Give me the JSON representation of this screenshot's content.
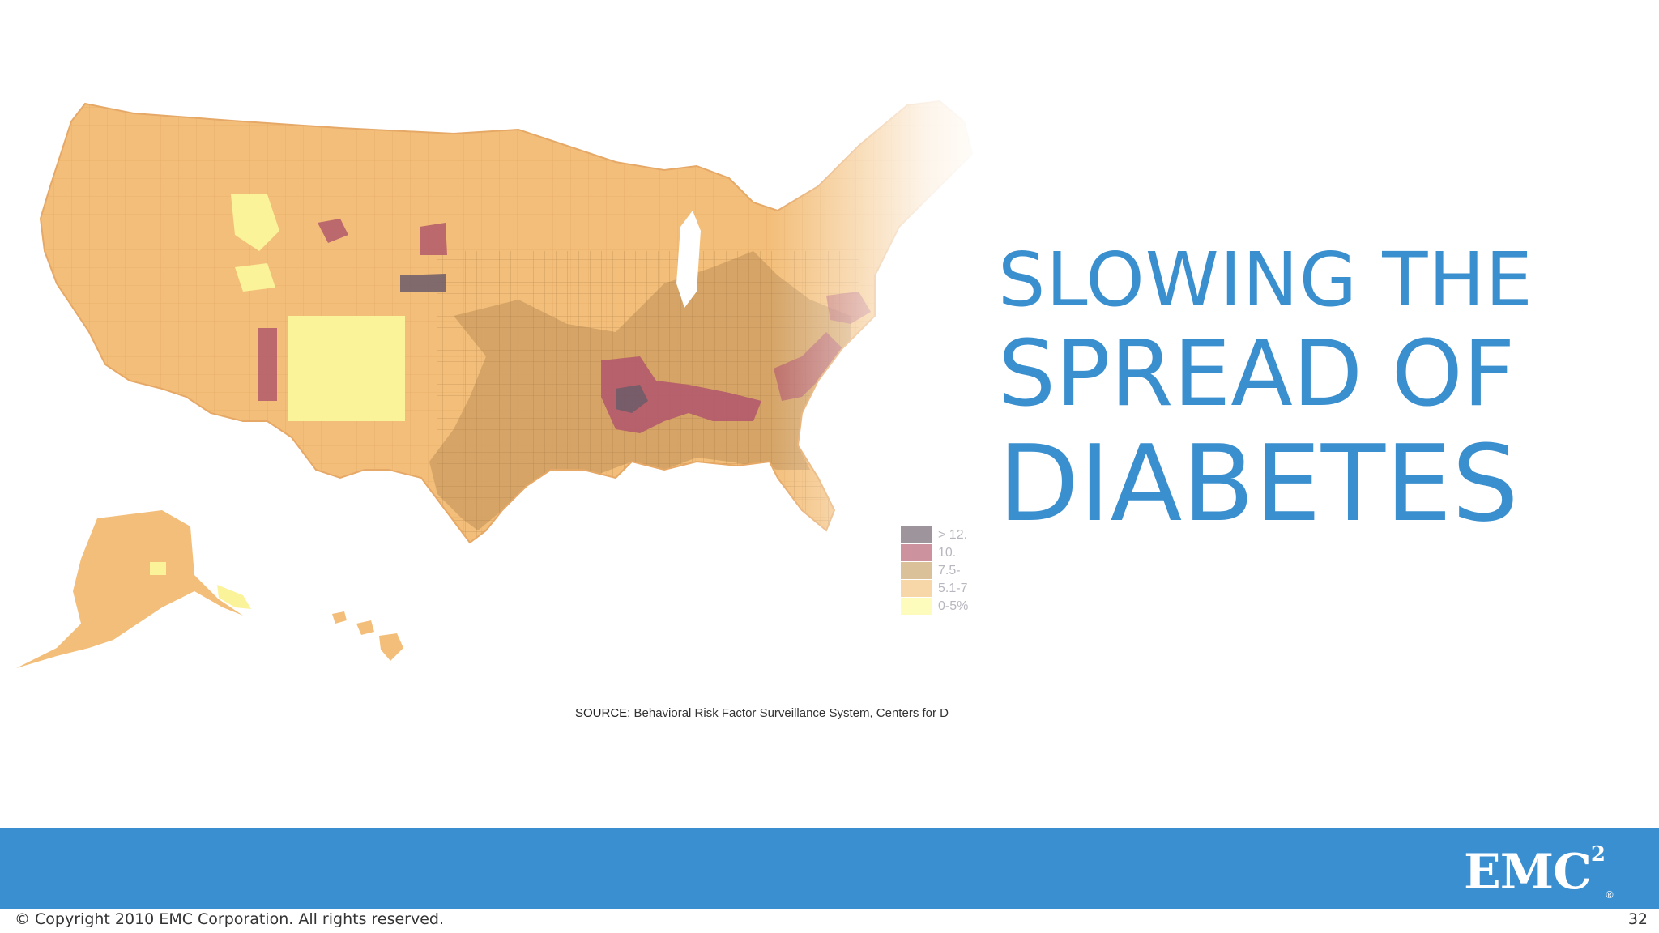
{
  "slide": {
    "title_lines": [
      "SLOWING THE",
      "SPREAD OF",
      "DIABETES"
    ],
    "copyright": "© Copyright 2010 EMC Corporation. All rights reserved.",
    "page_number": "32",
    "logo_text": "EMC",
    "logo_superscript": "2",
    "logo_mark": "®"
  },
  "map": {
    "source_label": "SOURCE:",
    "source_text": "Behavioral Risk Factor Surveillance System, Centers for D",
    "legend": [
      {
        "label": "> 12.",
        "color": "#6a5a66"
      },
      {
        "label": "10.",
        "color": "#b0586a"
      },
      {
        "label": "7.5-",
        "color": "#c8a064"
      },
      {
        "label": "5.1-7",
        "color": "#f2c07a"
      },
      {
        "label": "0-5%",
        "color": "#fdfb9a"
      }
    ],
    "colors": {
      "base": "#f3be79",
      "darker": "#cfa063",
      "high": "#b25a6b",
      "highest": "#6c5c68",
      "low": "#fbf39a",
      "water": "#ffffff"
    }
  },
  "colors": {
    "accent": "#3a8fcf",
    "footer_bar": "#3a8fd1"
  }
}
